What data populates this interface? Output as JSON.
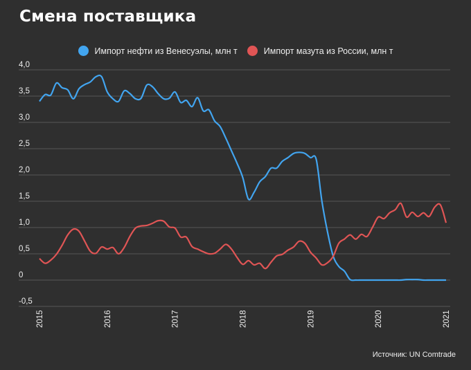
{
  "title": "Смена поставщика",
  "source": "Источник: UN Comtrade",
  "chart_data": {
    "type": "line",
    "title": "Смена поставщика",
    "x_start": "2015-01",
    "frequency": "monthly",
    "x_tick_labels": [
      "2015",
      "2016",
      "2017",
      "2018",
      "2019",
      "2020",
      "2021"
    ],
    "y_tick_labels": [
      "4,0",
      "3,5",
      "3,0",
      "2,5",
      "2,0",
      "1,5",
      "1,0",
      "0,5",
      "0",
      "-0,5"
    ],
    "y_ticks": [
      4.0,
      3.5,
      3.0,
      2.5,
      2.0,
      1.5,
      1.0,
      0.5,
      0,
      -0.5
    ],
    "ylim": [
      -0.5,
      4.0
    ],
    "xlim": [
      "2015-01",
      "2021-01"
    ],
    "grid": "horizontal",
    "legend_position": "top-center",
    "series": [
      {
        "name": "Импорт нефти из Венесуэлы, млн т",
        "color": "#42a5f0",
        "values": [
          3.4,
          3.53,
          3.52,
          3.75,
          3.66,
          3.62,
          3.45,
          3.64,
          3.72,
          3.77,
          3.87,
          3.87,
          3.58,
          3.45,
          3.4,
          3.6,
          3.55,
          3.45,
          3.46,
          3.71,
          3.68,
          3.55,
          3.45,
          3.46,
          3.58,
          3.38,
          3.42,
          3.3,
          3.47,
          3.22,
          3.24,
          3.03,
          2.92,
          2.7,
          2.46,
          2.22,
          1.95,
          1.54,
          1.67,
          1.87,
          1.97,
          2.13,
          2.13,
          2.26,
          2.33,
          2.41,
          2.43,
          2.41,
          2.33,
          2.3,
          1.51,
          0.92,
          0.46,
          0.26,
          0.17,
          0.01,
          0,
          0,
          0,
          0,
          0,
          0,
          0,
          0,
          0,
          0.01,
          0.01,
          0.01,
          0,
          0,
          0,
          0,
          0
        ]
      },
      {
        "name": "Импорт мазута из России, млн т",
        "color": "#e05555",
        "values": [
          0.41,
          0.32,
          0.38,
          0.49,
          0.66,
          0.86,
          0.97,
          0.93,
          0.74,
          0.55,
          0.51,
          0.63,
          0.59,
          0.62,
          0.5,
          0.62,
          0.83,
          0.99,
          1.03,
          1.04,
          1.08,
          1.13,
          1.12,
          1.01,
          0.99,
          0.82,
          0.82,
          0.64,
          0.59,
          0.54,
          0.5,
          0.51,
          0.59,
          0.68,
          0.59,
          0.43,
          0.3,
          0.37,
          0.29,
          0.32,
          0.22,
          0.34,
          0.46,
          0.49,
          0.57,
          0.63,
          0.74,
          0.7,
          0.53,
          0.42,
          0.29,
          0.33,
          0.45,
          0.7,
          0.78,
          0.86,
          0.78,
          0.87,
          0.83,
          1.01,
          1.2,
          1.17,
          1.28,
          1.34,
          1.46,
          1.2,
          1.29,
          1.21,
          1.28,
          1.21,
          1.39,
          1.43,
          1.09
        ]
      }
    ]
  }
}
